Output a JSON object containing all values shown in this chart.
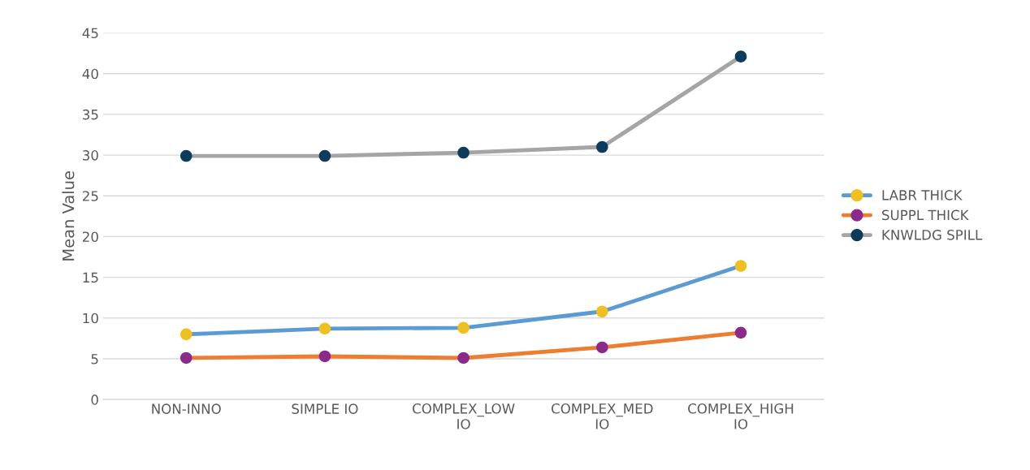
{
  "chart_data": {
    "type": "line",
    "ylabel": "Mean Value",
    "categories": [
      "NON-INNO",
      "SIMPLE IO",
      "COMPLEX_LOW\nIO",
      "COMPLEX_MED\nIO",
      "COMPLEX_HIGH\nIO"
    ],
    "series": [
      {
        "name": "LABR THICK",
        "color": "#5b9bd5",
        "colors": [
          "#f0c020",
          "#f0c020",
          "#f0c020",
          "#f0c020",
          "#f0c020"
        ],
        "values": [
          8.0,
          8.7,
          8.8,
          10.8,
          16.4
        ]
      },
      {
        "name": "SUPPL THICK",
        "color": "#ed7d31",
        "colors": [
          "#8b2a8b",
          "#8b2a8b",
          "#8b2a8b",
          "#8b2a8b",
          "#8b2a8b"
        ],
        "values": [
          5.1,
          5.3,
          5.1,
          6.4,
          8.2
        ]
      },
      {
        "name": "KNWLDG SPILL",
        "color": "#a5a5a5",
        "colors": [
          "#0d3b5c",
          "#0d3b5c",
          "#0d3b5c",
          "#0d3b5c",
          "#0d3b5c"
        ],
        "values": [
          29.9,
          29.9,
          30.3,
          31.0,
          42.1
        ]
      }
    ],
    "ylim": [
      0,
      45
    ],
    "yticks": [
      0,
      5,
      10,
      15,
      20,
      25,
      30,
      35,
      40,
      45
    ],
    "grid": "y",
    "legend": "right",
    "marker": "circle",
    "line_style": "solid"
  }
}
